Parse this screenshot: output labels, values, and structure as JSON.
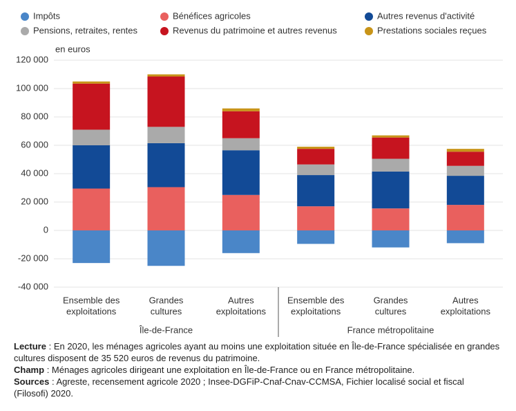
{
  "chart_data": {
    "type": "bar",
    "stacked": true,
    "y_label": "en euros",
    "categories": [
      [
        "Ensemble des",
        "exploitations"
      ],
      [
        "Grandes",
        "cultures"
      ],
      [
        "Autres",
        "exploitations"
      ],
      [
        "Ensemble des",
        "exploitations"
      ],
      [
        "Grandes",
        "cultures"
      ],
      [
        "Autres",
        "exploitations"
      ]
    ],
    "groups": [
      "Île-de-France",
      "France métropolitaine"
    ],
    "series": [
      {
        "name": "Impôts",
        "color": "#4a86c8",
        "values": [
          -23000,
          -25000,
          -16000,
          -9500,
          -12000,
          -9000
        ]
      },
      {
        "name": "Bénéfices agricoles",
        "color": "#e9605e",
        "values": [
          29500,
          30500,
          25000,
          17000,
          15500,
          18000
        ]
      },
      {
        "name": "Autres revenus d'activité",
        "color": "#124a96",
        "values": [
          30500,
          31000,
          31500,
          22000,
          26000,
          20500
        ]
      },
      {
        "name": "Pensions, retraites, rentes",
        "color": "#aaaaaa",
        "values": [
          11000,
          11500,
          8500,
          7500,
          9000,
          7000
        ]
      },
      {
        "name": "Revenus du patrimoine et autres revenus",
        "color": "#c6141f",
        "values": [
          32500,
          35520,
          19000,
          11000,
          15000,
          10000
        ]
      },
      {
        "name": "Prestations sociales reçues",
        "color": "#c89418",
        "values": [
          1500,
          1500,
          2000,
          1500,
          1500,
          2000
        ]
      }
    ],
    "ylim": [
      -40000,
      120000
    ],
    "yticks": [
      {
        "value": -40000,
        "label": "-40 000"
      },
      {
        "value": -20000,
        "label": "-20 000"
      },
      0,
      {
        "value": 20000,
        "label": "20 000"
      },
      {
        "value": 40000,
        "label": "40 000"
      },
      {
        "value": 60000,
        "label": "60 000"
      },
      {
        "value": 80000,
        "label": "80 000"
      },
      {
        "value": 100000,
        "label": "100 000"
      },
      {
        "value": 120000,
        "label": "120 000"
      }
    ],
    "grid": true,
    "notes": [
      {
        "label": "Lecture",
        "text": ": En 2020, les ménages agricoles ayant au moins une exploitation située en Île-de-France spécialisée en grandes cultures disposent de 35 520 euros de revenus du patrimoine."
      },
      {
        "label": "Champ",
        "text": ": Ménages agricoles dirigeant une exploitation en Île-de-France ou en France métropolitaine."
      },
      {
        "label": "Sources",
        "text": ": Agreste, recensement agricole 2020 ; Insee-DGFiP-Cnaf-Cnav-CCMSA, Fichier localisé social et fiscal (Filosofi) 2020."
      }
    ]
  }
}
